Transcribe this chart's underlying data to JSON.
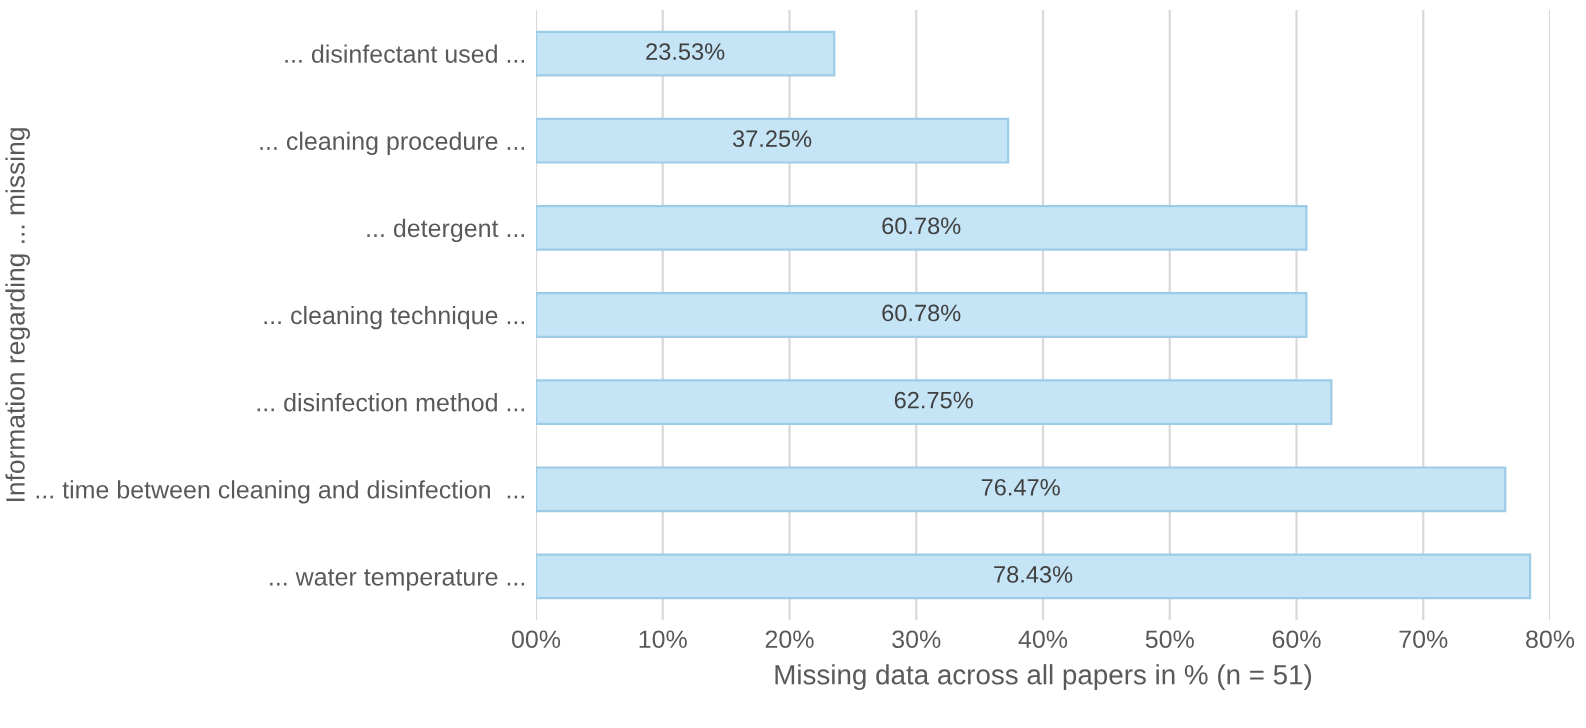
{
  "chart_data": {
    "type": "bar",
    "orientation": "horizontal",
    "xlabel": "Missing data across all papers in % (n = 51)",
    "ylabel": "Information regarding ... missing",
    "categories": [
      "... disinfectant used ...",
      "... cleaning procedure ...",
      "... detergent ...",
      "... cleaning technique ...",
      "... disinfection method ...",
      "... time between cleaning and disinfection  ...",
      "... water temperature ..."
    ],
    "values": [
      23.53,
      37.25,
      60.78,
      60.78,
      62.75,
      76.47,
      78.43
    ],
    "value_labels": [
      "23.53%",
      "37.25%",
      "60.78%",
      "60.78%",
      "62.75%",
      "76.47%",
      "78.43%"
    ],
    "color": "#c5e4f6",
    "xlim": [
      0,
      80
    ],
    "xticks": [
      {
        "value": 0,
        "label": "00%"
      },
      {
        "value": 10,
        "label": "10%"
      },
      {
        "value": 20,
        "label": "20%"
      },
      {
        "value": 30,
        "label": "30%"
      },
      {
        "value": 40,
        "label": "40%"
      },
      {
        "value": 50,
        "label": "50%"
      },
      {
        "value": 60,
        "label": "60%"
      },
      {
        "value": 70,
        "label": "70%"
      },
      {
        "value": 80,
        "label": "80%"
      }
    ],
    "grid": "x"
  }
}
